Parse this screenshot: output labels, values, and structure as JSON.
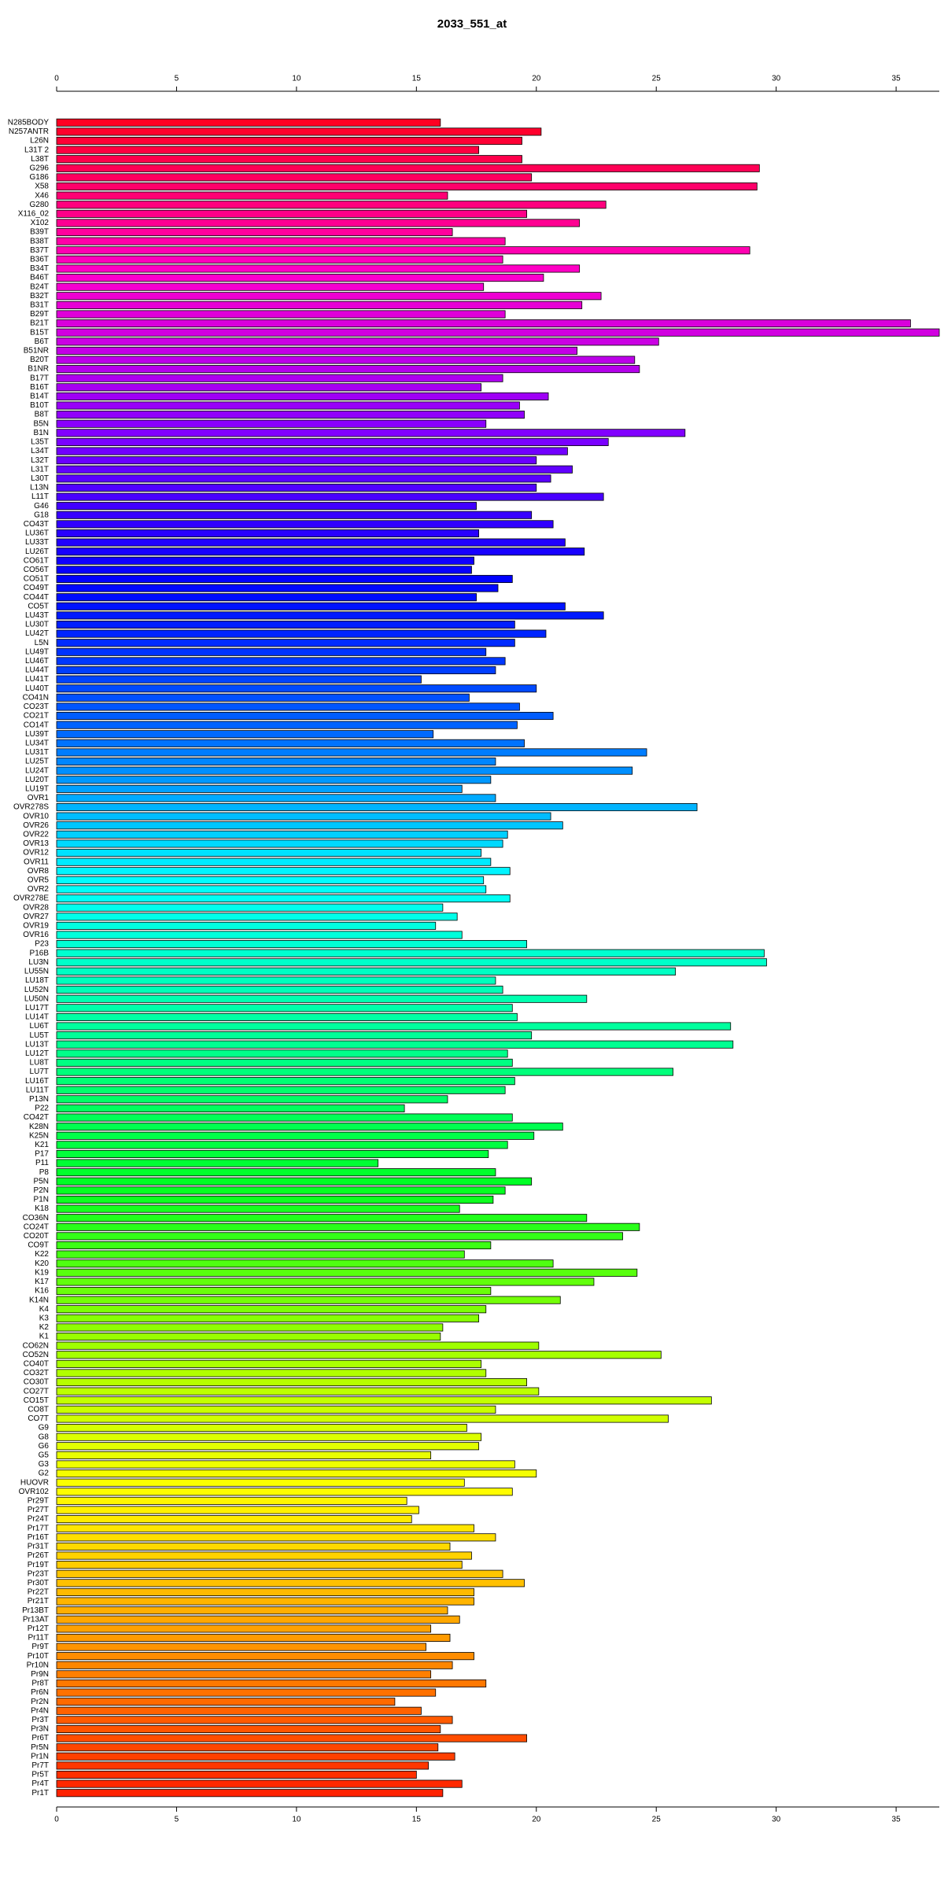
{
  "chart_data": {
    "type": "barh",
    "title": "2033_551_at",
    "categories": [
      "N285BODY",
      "N257ANTR",
      "L26N",
      "L31T 2",
      "L38T",
      "G296",
      "G186",
      "X58",
      "X46",
      "G280",
      "X116_02",
      "X102",
      "B39T",
      "B38T",
      "B37T",
      "B36T",
      "B34T",
      "B46T",
      "B24T",
      "B32T",
      "B31T",
      "B29T",
      "B21T",
      "B15T",
      "B6T",
      "B51NR",
      "B20T",
      "B1NR",
      "B17T",
      "B16T",
      "B14T",
      "B10T",
      "B8T",
      "B5N",
      "B1N",
      "L35T",
      "L34T",
      "L32T",
      "L31T",
      "L30T",
      "L13N",
      "L11T",
      "G46",
      "G18",
      "CO43T",
      "LU36T",
      "LU33T",
      "LU26T",
      "CO61T",
      "CO56T",
      "CO51T",
      "CO49T",
      "CO44T",
      "CO5T",
      "LU43T",
      "LU30T",
      "LU42T",
      "L5N",
      "LU49T",
      "LU46T",
      "LU44T",
      "LU41T",
      "LU40T",
      "CO41N",
      "CO23T",
      "CO21T",
      "CO14T",
      "LU39T",
      "LU34T",
      "LU31T",
      "LU25T",
      "LU24T",
      "LU20T",
      "LU19T",
      "OVR1",
      "OVR278S",
      "OVR10",
      "OVR26",
      "OVR22",
      "OVR13",
      "OVR12",
      "OVR11",
      "OVR8",
      "OVR5",
      "OVR2",
      "OVR278E",
      "OVR28",
      "OVR27",
      "OVR19",
      "OVR16",
      "P23",
      "P16B",
      "LU3N",
      "LU55N",
      "LU18T",
      "LU52N",
      "LU50N",
      "LU17T",
      "LU14T",
      "LU6T",
      "LU5T",
      "LU13T",
      "LU12T",
      "LU8T",
      "LU7T",
      "LU16T",
      "LU11T",
      "P13N",
      "P22",
      "CO42T",
      "K28N",
      "K25N",
      "K21",
      "P17",
      "P11",
      "P8",
      "P5N",
      "P2N",
      "P1N",
      "K18",
      "CO36N",
      "CO24T",
      "CO20T",
      "CO9T",
      "K22",
      "K20",
      "K19",
      "K17",
      "K16",
      "K14N",
      "K4",
      "K3",
      "K2",
      "K1",
      "CO62N",
      "CO52N",
      "CO40T",
      "CO32T",
      "CO30T",
      "CO27T",
      "CO15T",
      "CO8T",
      "CO7T",
      "G9",
      "G8",
      "G6",
      "G5",
      "G3",
      "G2",
      "HUOVR",
      "OVR102",
      "Pr29T",
      "Pr27T",
      "Pr24T",
      "Pr17T",
      "Pr16T",
      "Pr31T",
      "Pr26T",
      "Pr19T",
      "Pr23T",
      "Pr30T",
      "Pr22T",
      "Pr21T",
      "Pr13BT",
      "Pr13AT",
      "Pr12T",
      "Pr11T",
      "Pr9T",
      "Pr10T",
      "Pr10N",
      "Pr9N",
      "Pr8T",
      "Pr6N",
      "Pr2N",
      "Pr4N",
      "Pr3T",
      "Pr3N",
      "Pr6T",
      "Pr5N",
      "Pr1N",
      "Pr7T",
      "Pr5T",
      "Pr4T",
      "Pr1T"
    ],
    "values": [
      16.0,
      20.2,
      19.4,
      17.6,
      19.4,
      29.3,
      19.8,
      29.2,
      16.3,
      22.9,
      19.6,
      21.8,
      16.5,
      18.7,
      28.9,
      18.6,
      21.8,
      20.3,
      17.8,
      22.7,
      21.9,
      18.7,
      35.6,
      36.8,
      25.1,
      21.7,
      24.1,
      24.3,
      18.6,
      17.7,
      20.5,
      19.3,
      19.5,
      17.9,
      26.2,
      23.0,
      21.3,
      20.0,
      21.5,
      20.6,
      20.0,
      22.8,
      17.5,
      19.8,
      20.7,
      17.6,
      21.2,
      22.0,
      17.4,
      17.3,
      19.0,
      18.4,
      17.5,
      21.2,
      22.8,
      19.1,
      20.4,
      19.1,
      17.9,
      18.7,
      18.3,
      15.2,
      20.0,
      17.2,
      19.3,
      20.7,
      19.2,
      15.7,
      19.5,
      24.6,
      18.3,
      24.0,
      18.1,
      16.9,
      18.3,
      26.7,
      20.6,
      21.1,
      18.8,
      18.6,
      17.7,
      18.1,
      18.9,
      17.8,
      17.9,
      18.9,
      16.1,
      16.7,
      15.8,
      16.9,
      19.6,
      29.5,
      29.6,
      25.8,
      18.3,
      18.6,
      22.1,
      19.0,
      19.2,
      28.1,
      19.8,
      28.2,
      18.8,
      19.0,
      25.7,
      19.1,
      18.7,
      16.3,
      14.5,
      19.0,
      21.1,
      19.9,
      18.8,
      18.0,
      13.4,
      18.3,
      19.8,
      18.7,
      18.2,
      16.8,
      22.1,
      24.3,
      23.6,
      18.1,
      17.0,
      20.7,
      24.2,
      22.4,
      18.1,
      21.0,
      17.9,
      17.6,
      16.1,
      16.0,
      20.1,
      25.2,
      17.7,
      17.9,
      19.6,
      20.1,
      27.3,
      18.3,
      25.5,
      17.1,
      17.7,
      17.6,
      15.6,
      19.1,
      20.0,
      17.0,
      19.0,
      14.6,
      15.1,
      14.8,
      17.4,
      18.3,
      16.4,
      17.3,
      16.9,
      18.6,
      19.5,
      17.4,
      17.4,
      16.3,
      16.8,
      15.6,
      16.4,
      15.4,
      17.4,
      16.5,
      15.6,
      17.9,
      15.8,
      14.1,
      15.2,
      16.5,
      16.0,
      19.6,
      15.9,
      16.6,
      15.5,
      15.0,
      16.9,
      16.1
    ],
    "color_stops": [
      "#ff0022",
      "#ff00cc",
      "#8800ff",
      "#0000ff",
      "#0066ff",
      "#00ffff",
      "#00ff99",
      "#00ff22",
      "#99ff00",
      "#ffff00",
      "#ff9900",
      "#ff2200"
    ],
    "xlim": [
      0,
      36.8
    ],
    "xticks": [
      0,
      5,
      10,
      15,
      20,
      25,
      30,
      35
    ]
  }
}
